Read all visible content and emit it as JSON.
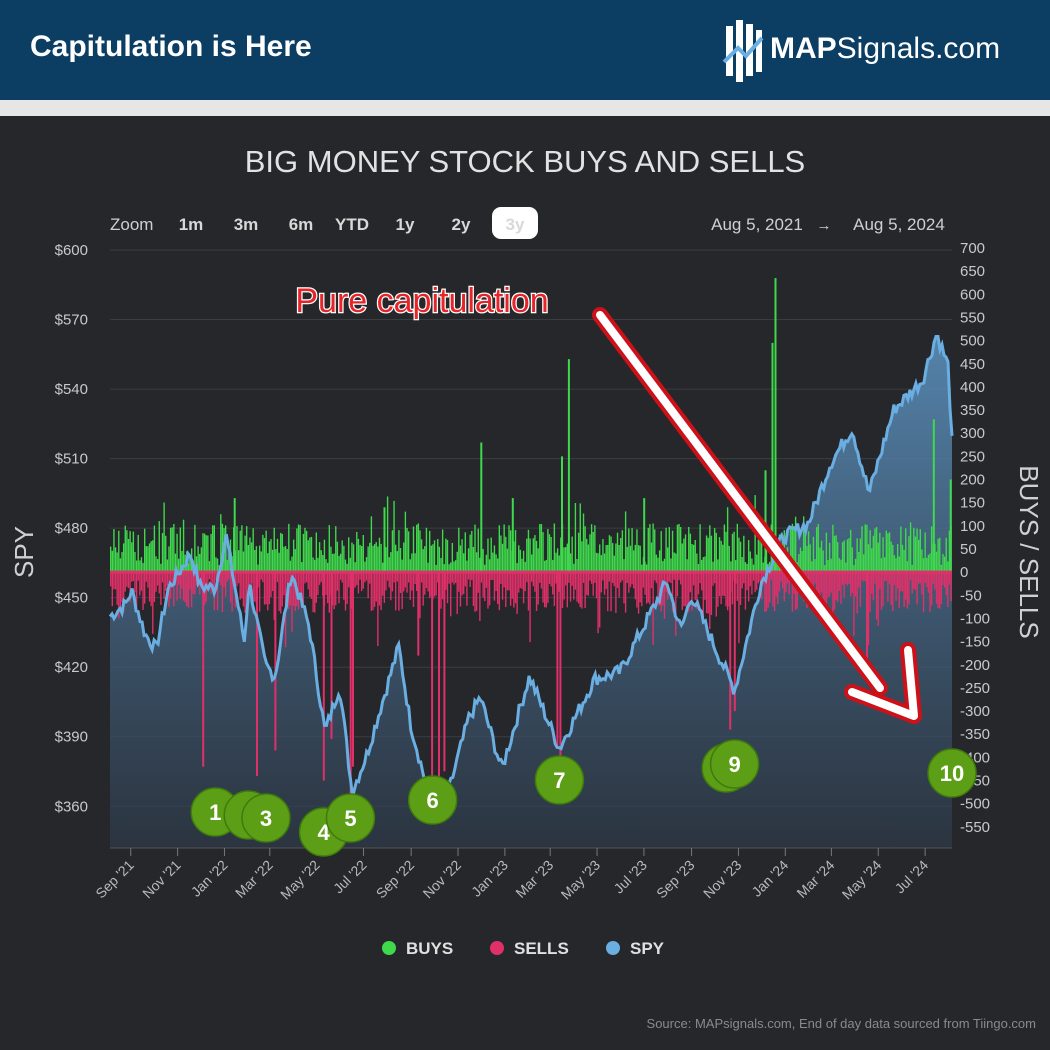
{
  "header": {
    "title": "Capitulation is Here",
    "logo_bold": "MAP",
    "logo_rest": "Signals.com"
  },
  "chart_data": {
    "type": "bar",
    "title": "BIG MONEY STOCK BUYS AND SELLS",
    "ylabel_left": "SPY",
    "ylabel_right": "BUYS / SELLS",
    "zoom": {
      "label": "Zoom",
      "options": [
        "1m",
        "3m",
        "6m",
        "YTD",
        "1y",
        "2y",
        "3y"
      ],
      "selected": "3y",
      "range_from": "Aug 5, 2021",
      "range_arrow": "→",
      "range_to": "Aug 5, 2024"
    },
    "left_axis": {
      "ticks": [
        "$600",
        "$570",
        "$540",
        "$510",
        "$480",
        "$450",
        "$420",
        "$390",
        "$360"
      ],
      "ylim": [
        342,
        600
      ]
    },
    "right_axis": {
      "ticks": [
        "700",
        "650",
        "600",
        "550",
        "500",
        "450",
        "400",
        "350",
        "300",
        "250",
        "200",
        "150",
        "100",
        "50",
        "0",
        "-50",
        "-100",
        "-150",
        "-200",
        "-250",
        "-300",
        "-350",
        "-400",
        "-450",
        "-500",
        "-550"
      ],
      "ylim": [
        -600,
        700
      ]
    },
    "x_labels": [
      "Sep '21",
      "Nov '21",
      "Jan '22",
      "Mar '22",
      "May '22",
      "Jul '22",
      "Sep '22",
      "Nov '22",
      "Jan '23",
      "Mar '23",
      "May '23",
      "Jul '23",
      "Sep '23",
      "Nov '23",
      "Jan '24",
      "Mar '24",
      "May '24",
      "Jul '24"
    ],
    "annotation": "Pure capitulation",
    "markers": [
      {
        "label": "1",
        "date": "2021-12-20"
      },
      {
        "label": "2",
        "date": "2022-02-01"
      },
      {
        "label": "3",
        "date": "2022-02-24"
      },
      {
        "label": "4",
        "date": "2022-05-10"
      },
      {
        "label": "5",
        "date": "2022-06-14"
      },
      {
        "label": "6",
        "date": "2022-09-29"
      },
      {
        "label": "7",
        "date": "2023-03-13"
      },
      {
        "label": "8",
        "date": "2023-10-16"
      },
      {
        "label": "9",
        "date": "2023-10-27"
      },
      {
        "label": "10",
        "date": "2024-08-05"
      }
    ],
    "spy_series": [
      [
        "2021-08-05",
        442
      ],
      [
        "2021-08-25",
        447
      ],
      [
        "2021-09-02",
        453
      ],
      [
        "2021-09-20",
        434
      ],
      [
        "2021-10-04",
        428
      ],
      [
        "2021-10-20",
        454
      ],
      [
        "2021-11-18",
        469
      ],
      [
        "2021-11-30",
        455
      ],
      [
        "2021-12-20",
        454
      ],
      [
        "2022-01-03",
        477
      ],
      [
        "2022-01-27",
        431
      ],
      [
        "2022-02-02",
        457
      ],
      [
        "2022-02-23",
        421
      ],
      [
        "2022-03-08",
        416
      ],
      [
        "2022-03-29",
        461
      ],
      [
        "2022-04-21",
        438
      ],
      [
        "2022-05-12",
        392
      ],
      [
        "2022-05-31",
        412
      ],
      [
        "2022-06-16",
        366
      ],
      [
        "2022-07-05",
        382
      ],
      [
        "2022-08-16",
        429
      ],
      [
        "2022-08-31",
        396
      ],
      [
        "2022-09-30",
        357
      ],
      [
        "2022-10-12",
        357
      ],
      [
        "2022-11-15",
        398
      ],
      [
        "2022-11-30",
        407
      ],
      [
        "2022-12-28",
        376
      ],
      [
        "2023-02-02",
        416
      ],
      [
        "2023-03-13",
        385
      ],
      [
        "2023-04-28",
        415
      ],
      [
        "2023-05-31",
        418
      ],
      [
        "2023-07-31",
        457
      ],
      [
        "2023-08-18",
        436
      ],
      [
        "2023-09-01",
        451
      ],
      [
        "2023-10-27",
        410
      ],
      [
        "2023-11-30",
        456
      ],
      [
        "2023-12-29",
        476
      ],
      [
        "2024-01-31",
        482
      ],
      [
        "2024-02-29",
        508
      ],
      [
        "2024-03-28",
        523
      ],
      [
        "2024-04-19",
        495
      ],
      [
        "2024-05-21",
        531
      ],
      [
        "2024-06-28",
        544
      ],
      [
        "2024-07-16",
        564
      ],
      [
        "2024-07-31",
        550
      ],
      [
        "2024-08-05",
        517
      ]
    ],
    "buys_baseline": 100,
    "sells_baseline": -75,
    "buy_spikes": [
      [
        "2022-01-13",
        160
      ],
      [
        "2022-07-27",
        140
      ],
      [
        "2022-11-30",
        280
      ],
      [
        "2023-01-10",
        160
      ],
      [
        "2023-03-15",
        250
      ],
      [
        "2023-03-24",
        460
      ],
      [
        "2023-06-30",
        160
      ],
      [
        "2023-12-05",
        220
      ],
      [
        "2023-12-14",
        495
      ],
      [
        "2023-12-18",
        635
      ],
      [
        "2024-07-11",
        330
      ],
      [
        "2024-08-02",
        200
      ]
    ],
    "sell_spikes": [
      [
        "2021-12-03",
        -420
      ],
      [
        "2022-02-11",
        -440
      ],
      [
        "2022-03-07",
        -385
      ],
      [
        "2022-05-09",
        -450
      ],
      [
        "2022-05-19",
        -360
      ],
      [
        "2022-06-13",
        -520
      ],
      [
        "2022-06-16",
        -420
      ],
      [
        "2022-09-09",
        -180
      ],
      [
        "2022-09-27",
        -480
      ],
      [
        "2022-10-06",
        -500
      ],
      [
        "2022-10-13",
        -430
      ],
      [
        "2023-03-09",
        -375
      ],
      [
        "2023-03-13",
        -420
      ],
      [
        "2023-10-20",
        -340
      ],
      [
        "2023-10-26",
        -300
      ],
      [
        "2024-04-15",
        -200
      ]
    ],
    "legend": [
      {
        "name": "BUYS",
        "color": "#3fd94c"
      },
      {
        "name": "SELLS",
        "color": "#e03069"
      },
      {
        "name": "SPY",
        "color": "#6aaee2"
      }
    ],
    "source": "Source: MAPsignals.com, End of day data sourced from Tiingo.com"
  }
}
